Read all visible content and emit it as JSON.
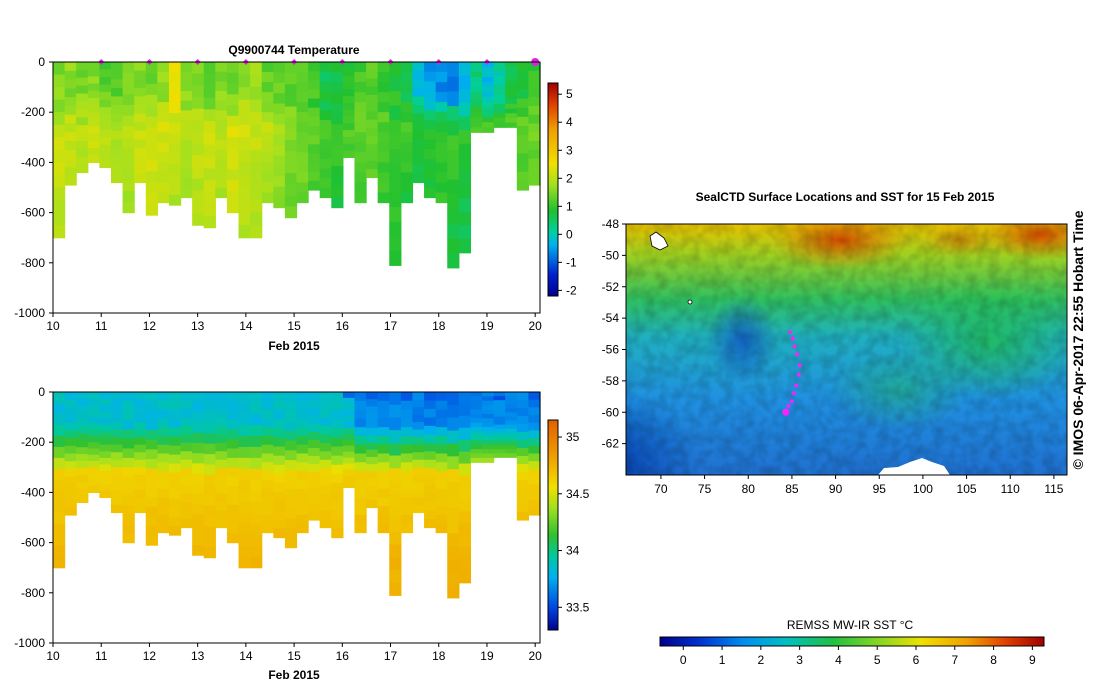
{
  "chart_data": [
    {
      "id": "temp",
      "type": "heatmap",
      "title": "Q9900744  Temperature",
      "xlabel": "Feb 2015",
      "x_ticks": [
        10,
        11,
        12,
        13,
        14,
        15,
        16,
        17,
        18,
        19,
        20
      ],
      "xlim": [
        10,
        20.1
      ],
      "y_ticks": [
        0,
        -200,
        -400,
        -600,
        -800,
        -1000
      ],
      "ylim": [
        -1000,
        0
      ],
      "colorbar_ticks": [
        5,
        4,
        3,
        2,
        1,
        0,
        -1,
        -2
      ],
      "colorbar_range": [
        -2.2,
        5.4
      ],
      "profile_bottom_depths_m": [
        700,
        490,
        440,
        400,
        420,
        480,
        600,
        480,
        610,
        560,
        570,
        540,
        650,
        660,
        540,
        600,
        700,
        700,
        560,
        580,
        620,
        560,
        510,
        540,
        580,
        380,
        560,
        460,
        560,
        810,
        560,
        480,
        540,
        560,
        820,
        760,
        280,
        280,
        260,
        260,
        510,
        490
      ],
      "mixed_layer_values": [
        1.5,
        1.6,
        1.4,
        1.5,
        1.2,
        1.3,
        1.5,
        1.6,
        1.4,
        1.7,
        2.4,
        1.6,
        1.5,
        1.2,
        1.5,
        1.4,
        1.7,
        1.8,
        1.3,
        1.4,
        1.3,
        1.2,
        1.0,
        0.6,
        0.7,
        0.9,
        1.1,
        1.2,
        1.0,
        0.8,
        0.6,
        -0.3,
        -0.5,
        -0.6,
        -0.7,
        -0.4,
        0.3,
        -0.3,
        0.1,
        0.6,
        0.8,
        1.0
      ],
      "deep_values": [
        2.2,
        2.1,
        2.0,
        2.2,
        2.1,
        1.9,
        2.0,
        2.2,
        2.3,
        2.2,
        2.1,
        2.0,
        2.1,
        2.2,
        2.0,
        2.3,
        2.2,
        2.1,
        2.0,
        1.8,
        1.6,
        1.5,
        1.3,
        1.1,
        1.0,
        1.2,
        1.3,
        1.4,
        1.2,
        1.1,
        1.0,
        0.9,
        1.0,
        1.1,
        1.0,
        0.9,
        1.2,
        1.1,
        1.0,
        1.2,
        1.3,
        1.4
      ]
    },
    {
      "id": "sal",
      "type": "heatmap",
      "title": "",
      "xlabel": "Feb 2015",
      "x_ticks": [
        10,
        11,
        12,
        13,
        14,
        15,
        16,
        17,
        18,
        19,
        20
      ],
      "xlim": [
        10,
        20.1
      ],
      "y_ticks": [
        0,
        -200,
        -400,
        -600,
        -800,
        -1000
      ],
      "ylim": [
        -1000,
        0
      ],
      "colorbar_ticks": [
        35,
        34.5,
        34,
        33.5
      ],
      "colorbar_range": [
        33.3,
        35.15
      ],
      "profile_bottom_depths_m": [
        700,
        490,
        440,
        400,
        420,
        480,
        600,
        480,
        610,
        560,
        570,
        540,
        650,
        660,
        540,
        600,
        700,
        700,
        560,
        580,
        620,
        560,
        510,
        540,
        580,
        380,
        560,
        460,
        560,
        810,
        560,
        480,
        540,
        560,
        820,
        760,
        280,
        280,
        260,
        260,
        510,
        490
      ]
    },
    {
      "id": "map",
      "type": "heatmap",
      "title": "SealCTD Surface Locations and SST for 15 Feb 2015",
      "x_ticks": [
        70,
        75,
        80,
        85,
        90,
        95,
        100,
        105,
        110,
        115
      ],
      "xlim": [
        66,
        116.5
      ],
      "y_ticks": [
        -48,
        -50,
        -52,
        -54,
        -56,
        -58,
        -60,
        -62
      ],
      "ylim": [
        -64,
        -48
      ],
      "colorbar_title": "REMSS MW-IR SST °C",
      "colorbar_ticks": [
        0,
        1,
        2,
        3,
        4,
        5,
        6,
        7,
        8,
        9
      ],
      "colorbar_range": [
        -0.6,
        9.3
      ],
      "track_lon": [
        84.3,
        84.6,
        85.0,
        85.2,
        85.5,
        85.8,
        85.9,
        85.6,
        85.3,
        85.1,
        84.8
      ],
      "track_lat": [
        -60.0,
        -59.6,
        -59.3,
        -58.8,
        -58.3,
        -57.6,
        -57.0,
        -56.3,
        -55.8,
        -55.3,
        -54.9
      ]
    }
  ],
  "sidebar_text": "© IMOS 06-Apr-2017 22:55 Hobart Time"
}
